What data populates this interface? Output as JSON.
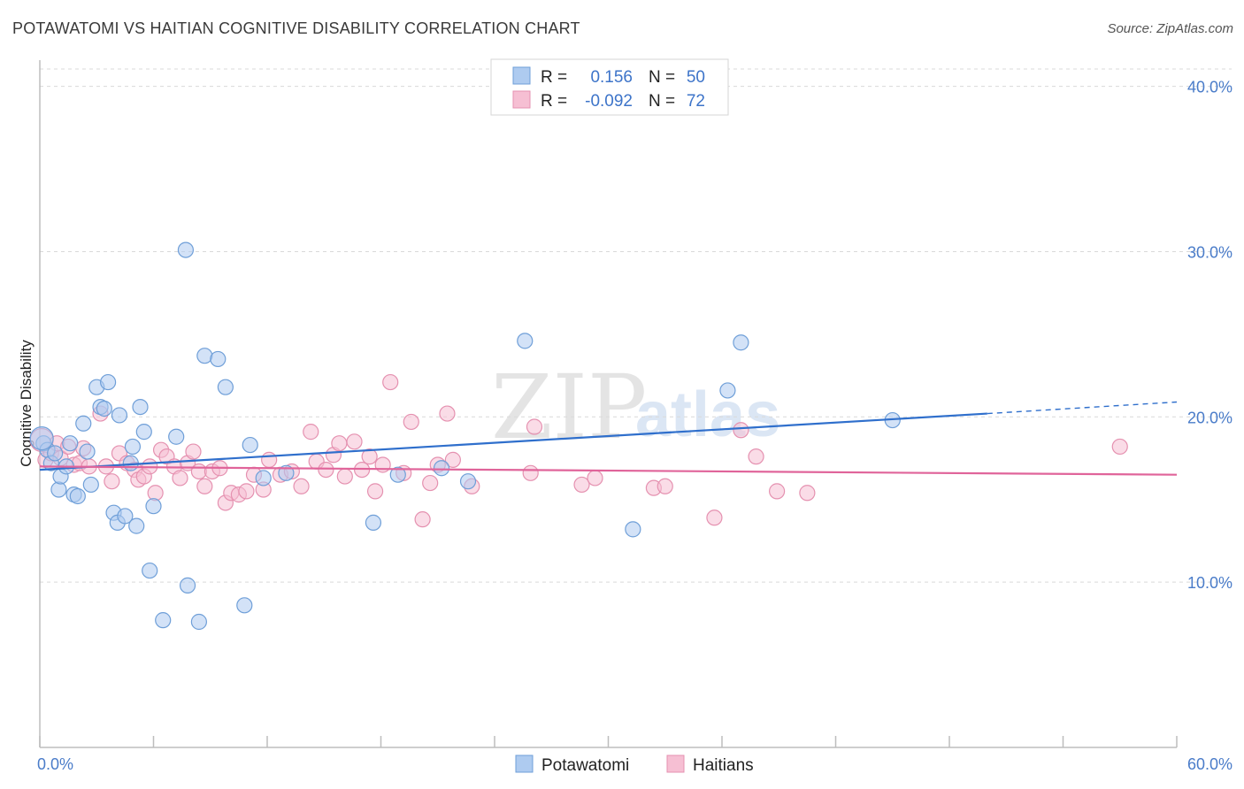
{
  "header": {
    "title": "POTAWATOMI VS HAITIAN COGNITIVE DISABILITY CORRELATION CHART",
    "source": "Source: ZipAtlas.com"
  },
  "watermark": {
    "zip": "ZIP",
    "atlas": "atlas"
  },
  "colors": {
    "blue_fill": "#aecbf0",
    "blue_stroke": "#6f9fd8",
    "blue_line": "#2f6fcc",
    "pink_fill": "#f6bfd3",
    "pink_stroke": "#e591b0",
    "pink_line": "#e0649a",
    "grid": "#d9d9d9",
    "tick_text": "#4a7cc9"
  },
  "legend_top": {
    "rows": [
      {
        "r_label": "R =",
        "r_value": "0.156",
        "n_label": "N =",
        "n_value": "50"
      },
      {
        "r_label": "R =",
        "r_value": "-0.092",
        "n_label": "N =",
        "n_value": "72"
      }
    ]
  },
  "legend_bottom": {
    "items": [
      "Potawatomi",
      "Haitians"
    ]
  },
  "chart_data": {
    "type": "scatter",
    "title": "POTAWATOMI VS HAITIAN COGNITIVE DISABILITY CORRELATION CHART",
    "xlabel": "",
    "ylabel": "Cognitive Disability",
    "xlim": [
      0,
      60
    ],
    "ylim": [
      0,
      42
    ],
    "x_tick_labels": [
      "0.0%",
      "60.0%"
    ],
    "y_ticks": [
      10,
      20,
      30,
      40
    ],
    "y_tick_labels": [
      "10.0%",
      "20.0%",
      "30.0%",
      "40.0%"
    ],
    "grid": true,
    "legend": "top-center",
    "series": [
      {
        "name": "Potawatomi",
        "r": 0.156,
        "n": 50,
        "trend": {
          "x0": 0,
          "y0": 16.8,
          "x1": 50,
          "y1": 20.2,
          "dash_to_x": 60,
          "dash_to_y": 20.9
        },
        "points": [
          [
            0.2,
            18.4
          ],
          [
            0.4,
            18.0
          ],
          [
            0.6,
            17.2
          ],
          [
            0.8,
            17.8
          ],
          [
            1.0,
            15.6
          ],
          [
            1.1,
            16.4
          ],
          [
            1.4,
            17.0
          ],
          [
            1.6,
            18.4
          ],
          [
            1.8,
            15.3
          ],
          [
            2.0,
            15.2
          ],
          [
            2.3,
            19.6
          ],
          [
            2.5,
            17.9
          ],
          [
            2.7,
            15.9
          ],
          [
            3.0,
            21.8
          ],
          [
            3.2,
            20.6
          ],
          [
            3.4,
            20.5
          ],
          [
            3.6,
            22.1
          ],
          [
            3.9,
            14.2
          ],
          [
            4.1,
            13.6
          ],
          [
            4.2,
            20.1
          ],
          [
            4.5,
            14.0
          ],
          [
            4.8,
            17.2
          ],
          [
            4.9,
            18.2
          ],
          [
            5.1,
            13.4
          ],
          [
            5.3,
            20.6
          ],
          [
            5.5,
            19.1
          ],
          [
            5.8,
            10.7
          ],
          [
            6.0,
            14.6
          ],
          [
            6.5,
            7.7
          ],
          [
            7.2,
            18.8
          ],
          [
            7.7,
            30.1
          ],
          [
            7.8,
            9.8
          ],
          [
            8.4,
            7.6
          ],
          [
            8.7,
            23.7
          ],
          [
            9.4,
            23.5
          ],
          [
            9.8,
            21.8
          ],
          [
            10.8,
            8.6
          ],
          [
            11.1,
            18.3
          ],
          [
            11.8,
            16.3
          ],
          [
            13.0,
            16.6
          ],
          [
            17.6,
            13.6
          ],
          [
            18.9,
            16.5
          ],
          [
            21.2,
            16.9
          ],
          [
            22.6,
            16.1
          ],
          [
            25.6,
            24.6
          ],
          [
            31.3,
            13.2
          ],
          [
            36.3,
            21.6
          ],
          [
            37.0,
            24.5
          ],
          [
            45.0,
            19.8
          ],
          [
            0.1,
            18.7
          ]
        ]
      },
      {
        "name": "Haitians",
        "r": -0.092,
        "n": 72,
        "trend": {
          "x0": 0,
          "y0": 17.0,
          "x1": 60,
          "y1": 16.5
        },
        "points": [
          [
            0.1,
            18.6
          ],
          [
            0.3,
            17.4
          ],
          [
            0.6,
            17.8
          ],
          [
            0.9,
            18.4
          ],
          [
            1.1,
            17.5
          ],
          [
            1.5,
            18.2
          ],
          [
            1.8,
            17.1
          ],
          [
            2.1,
            17.2
          ],
          [
            2.6,
            17.0
          ],
          [
            3.2,
            20.2
          ],
          [
            3.5,
            17.0
          ],
          [
            3.8,
            16.1
          ],
          [
            4.2,
            17.8
          ],
          [
            4.6,
            17.2
          ],
          [
            5.0,
            16.8
          ],
          [
            5.2,
            16.2
          ],
          [
            5.5,
            16.4
          ],
          [
            5.8,
            17.0
          ],
          [
            6.1,
            15.4
          ],
          [
            6.4,
            18.0
          ],
          [
            6.7,
            17.6
          ],
          [
            7.1,
            17.0
          ],
          [
            7.4,
            16.3
          ],
          [
            7.8,
            17.2
          ],
          [
            8.1,
            17.9
          ],
          [
            8.4,
            16.7
          ],
          [
            8.7,
            15.8
          ],
          [
            9.1,
            16.7
          ],
          [
            9.5,
            16.9
          ],
          [
            9.8,
            14.8
          ],
          [
            10.1,
            15.4
          ],
          [
            10.5,
            15.3
          ],
          [
            10.9,
            15.5
          ],
          [
            11.3,
            16.5
          ],
          [
            11.8,
            15.6
          ],
          [
            12.1,
            17.4
          ],
          [
            12.7,
            16.5
          ],
          [
            13.3,
            16.7
          ],
          [
            13.8,
            15.8
          ],
          [
            14.3,
            19.1
          ],
          [
            14.6,
            17.3
          ],
          [
            15.1,
            16.8
          ],
          [
            15.5,
            17.7
          ],
          [
            15.8,
            18.4
          ],
          [
            16.1,
            16.4
          ],
          [
            16.6,
            18.5
          ],
          [
            17.0,
            16.8
          ],
          [
            17.4,
            17.6
          ],
          [
            17.7,
            15.5
          ],
          [
            18.1,
            17.1
          ],
          [
            18.5,
            22.1
          ],
          [
            19.2,
            16.6
          ],
          [
            19.6,
            19.7
          ],
          [
            20.2,
            13.8
          ],
          [
            20.6,
            16.0
          ],
          [
            21.0,
            17.1
          ],
          [
            21.5,
            20.2
          ],
          [
            21.8,
            17.4
          ],
          [
            22.8,
            15.8
          ],
          [
            25.9,
            16.6
          ],
          [
            26.1,
            19.4
          ],
          [
            28.6,
            15.9
          ],
          [
            29.3,
            16.3
          ],
          [
            32.4,
            15.7
          ],
          [
            33.0,
            15.8
          ],
          [
            35.6,
            13.9
          ],
          [
            37.0,
            19.2
          ],
          [
            37.8,
            17.6
          ],
          [
            38.9,
            15.5
          ],
          [
            40.5,
            15.4
          ],
          [
            57.0,
            18.2
          ],
          [
            2.3,
            18.1
          ]
        ]
      }
    ]
  }
}
